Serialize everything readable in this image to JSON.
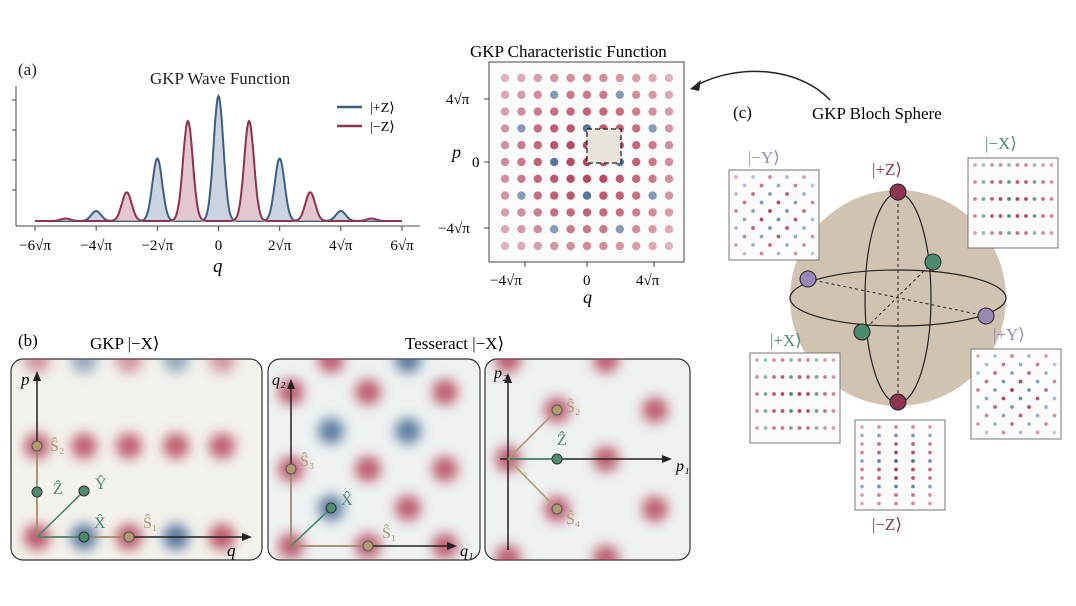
{
  "panel_a": {
    "label": "(a)",
    "title": "GKP Wave Function",
    "xlabel": "q",
    "legend": [
      {
        "text": "|+Z⟩",
        "color": "#3d5f80"
      },
      {
        "text": "|−Z⟩",
        "color": "#8c3352"
      }
    ]
  },
  "char_fn": {
    "title": "GKP Characteristic Function",
    "xlabel": "q",
    "ylabel": "p",
    "x_tick_labels": [
      "−4√π",
      "0",
      "4√π"
    ],
    "y_tick_labels": [
      "4√π",
      "0",
      "−4√π"
    ]
  },
  "panel_b": {
    "label": "(b)",
    "gkp_title": "GKP |−X⟩",
    "tesseract_title": "Tesseract |−X⟩",
    "gkp_axes": {
      "x": "q",
      "y": "p"
    },
    "gkp_ops": {
      "s2": "Ŝ₂",
      "z": "Ẑ",
      "y": "Ŷ",
      "x": "X̂",
      "s1": "Ŝ₁"
    },
    "tess1_axes": {
      "x": "q₁",
      "y": "q₂"
    },
    "tess1_ops": {
      "s3": "Ŝ₃",
      "x": "X̂",
      "s1": "Ŝ₁"
    },
    "tess2_axes": {
      "x": "p₁",
      "y": "p₂"
    },
    "tess2_ops": {
      "s2": "Ŝ₂",
      "z": "Ẑ",
      "s4": "Ŝ₄"
    }
  },
  "panel_c": {
    "label": "(c)",
    "title": "GKP Bloch Sphere",
    "states": {
      "plus_z": "|+Z⟩",
      "minus_z": "|−Z⟩",
      "plus_x": "|+X⟩",
      "minus_x": "|−X⟩",
      "plus_y": "|+Y⟩",
      "minus_y": "|−Y⟩"
    },
    "colors": {
      "z": "#8c3352",
      "x": "#4d8a70",
      "y": "#9b87b5",
      "sphere": "#c9b9a3"
    }
  },
  "chart_data": {
    "type": "line",
    "title": "GKP Wave Function",
    "xlabel": "q",
    "ylabel": "",
    "xlim": [
      -6,
      6
    ],
    "x_units": "√π",
    "x_tick_labels": [
      "−6√π",
      "−4√π",
      "−2√π",
      "0",
      "2√π",
      "4√π",
      "6√π"
    ],
    "x_ticks": [
      -6,
      -4,
      -2,
      0,
      2,
      4,
      6
    ],
    "series": [
      {
        "name": "|+Z⟩",
        "color": "#3d5f80",
        "x": [
          -6,
          -4,
          -2,
          0,
          2,
          4,
          6
        ],
        "values": [
          0.0,
          0.08,
          0.5,
          1.0,
          0.5,
          0.08,
          0.0
        ]
      },
      {
        "name": "|−Z⟩",
        "color": "#8c3352",
        "x": [
          -5,
          -3,
          -1,
          1,
          3,
          5
        ],
        "values": [
          0.02,
          0.23,
          0.8,
          0.8,
          0.23,
          0.02
        ]
      }
    ]
  }
}
